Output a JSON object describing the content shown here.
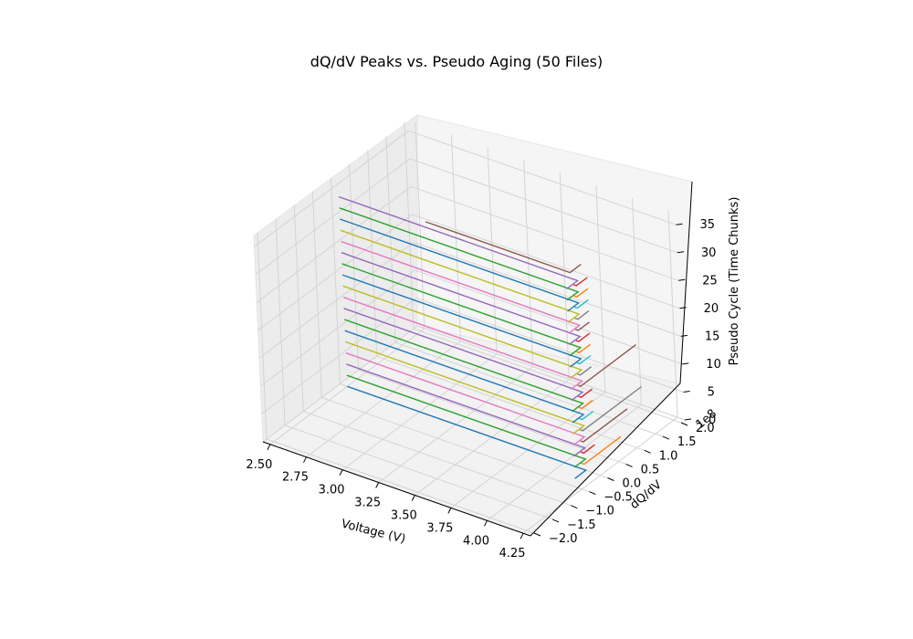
{
  "chart_data": {
    "type": "line",
    "projection": "3d",
    "title": "dQ/dV Peaks vs. Pseudo Aging (50 Files)",
    "xlabel": "Voltage (V)",
    "ylabel": "dQ/dV",
    "zlabel": "Pseudo Cycle (Time Chunks)",
    "y_offset_label": "1e8",
    "xlim": [
      2.45,
      4.3
    ],
    "ylim": [
      -2.1,
      2.1
    ],
    "zlim": [
      0,
      37
    ],
    "x_ticks": [
      "2.50",
      "2.75",
      "3.00",
      "3.25",
      "3.50",
      "3.75",
      "4.00",
      "4.25"
    ],
    "y_ticks": [
      "−2.0",
      "−1.5",
      "−1.0",
      "−0.5",
      "0.0",
      "0.5",
      "1.0",
      "1.5",
      "2.0"
    ],
    "z_ticks": [
      "0",
      "5",
      "10",
      "15",
      "20",
      "25",
      "30",
      "35"
    ],
    "grid": true,
    "legend": "none",
    "colors": [
      "#1f77b4",
      "#ff7f0e",
      "#2ca02c",
      "#d62728",
      "#9467bd",
      "#8c564b",
      "#e377c2",
      "#7f7f7f",
      "#bcbd22",
      "#17becf"
    ],
    "series": [
      {
        "voltage_start": 2.5,
        "voltage_end": 4.15,
        "cycle": 0,
        "spike_dqdv": -0.3
      },
      {
        "voltage_start": 4.12,
        "voltage_end": 4.14,
        "cycle": 1,
        "spike_dqdv": 1.0
      },
      {
        "voltage_start": 2.5,
        "voltage_end": 4.15,
        "cycle": 2,
        "spike_dqdv": -0.3
      },
      {
        "voltage_start": 4.12,
        "voltage_end": 4.14,
        "cycle": 3,
        "spike_dqdv": 0.3
      },
      {
        "voltage_start": 2.5,
        "voltage_end": 4.15,
        "cycle": 4,
        "spike_dqdv": -0.3
      },
      {
        "voltage_start": 4.12,
        "voltage_end": 4.14,
        "cycle": 5,
        "spike_dqdv": 1.2
      },
      {
        "voltage_start": 2.5,
        "voltage_end": 4.15,
        "cycle": 6,
        "spike_dqdv": -0.3
      },
      {
        "voltage_start": 4.12,
        "voltage_end": 4.14,
        "cycle": 7,
        "spike_dqdv": 1.6
      },
      {
        "voltage_start": 2.5,
        "voltage_end": 4.15,
        "cycle": 8,
        "spike_dqdv": -0.3
      },
      {
        "voltage_start": 4.12,
        "voltage_end": 4.14,
        "cycle": 9,
        "spike_dqdv": 0.3
      },
      {
        "voltage_start": 2.5,
        "voltage_end": 4.15,
        "cycle": 10,
        "spike_dqdv": -0.3
      },
      {
        "voltage_start": 4.12,
        "voltage_end": 4.14,
        "cycle": 11,
        "spike_dqdv": 0.3
      },
      {
        "voltage_start": 2.5,
        "voltage_end": 4.15,
        "cycle": 12,
        "spike_dqdv": -0.3
      },
      {
        "voltage_start": 4.12,
        "voltage_end": 4.14,
        "cycle": 13,
        "spike_dqdv": 0.3
      },
      {
        "voltage_start": 2.5,
        "voltage_end": 4.15,
        "cycle": 14,
        "spike_dqdv": -0.3
      },
      {
        "voltage_start": 4.12,
        "voltage_end": 4.14,
        "cycle": 15,
        "spike_dqdv": 1.5
      },
      {
        "voltage_start": 2.5,
        "voltage_end": 4.15,
        "cycle": 16,
        "spike_dqdv": -0.3
      },
      {
        "voltage_start": 4.12,
        "voltage_end": 4.14,
        "cycle": 17,
        "spike_dqdv": 0.3
      },
      {
        "voltage_start": 2.5,
        "voltage_end": 4.15,
        "cycle": 18,
        "spike_dqdv": -0.3
      },
      {
        "voltage_start": 4.12,
        "voltage_end": 4.14,
        "cycle": 19,
        "spike_dqdv": 0.3
      },
      {
        "voltage_start": 2.5,
        "voltage_end": 4.15,
        "cycle": 20,
        "spike_dqdv": -0.3
      },
      {
        "voltage_start": 4.12,
        "voltage_end": 4.14,
        "cycle": 21,
        "spike_dqdv": 0.3
      },
      {
        "voltage_start": 2.5,
        "voltage_end": 4.15,
        "cycle": 22,
        "spike_dqdv": -0.3
      },
      {
        "voltage_start": 4.12,
        "voltage_end": 4.14,
        "cycle": 23,
        "spike_dqdv": 0.3
      },
      {
        "voltage_start": 2.5,
        "voltage_end": 4.15,
        "cycle": 24,
        "spike_dqdv": -0.3
      },
      {
        "voltage_start": 4.12,
        "voltage_end": 4.14,
        "cycle": 25,
        "spike_dqdv": 0.3
      },
      {
        "voltage_start": 2.5,
        "voltage_end": 4.15,
        "cycle": 26,
        "spike_dqdv": -0.3
      },
      {
        "voltage_start": 4.12,
        "voltage_end": 4.14,
        "cycle": 27,
        "spike_dqdv": 0.3
      },
      {
        "voltage_start": 2.5,
        "voltage_end": 4.15,
        "cycle": 28,
        "spike_dqdv": -0.3
      },
      {
        "voltage_start": 4.12,
        "voltage_end": 4.14,
        "cycle": 29,
        "spike_dqdv": 0.3
      },
      {
        "voltage_start": 2.5,
        "voltage_end": 4.15,
        "cycle": 30,
        "spike_dqdv": -0.3
      },
      {
        "voltage_start": 4.12,
        "voltage_end": 4.14,
        "cycle": 31,
        "spike_dqdv": 0.3
      },
      {
        "voltage_start": 2.5,
        "voltage_end": 4.15,
        "cycle": 32,
        "spike_dqdv": -0.3
      },
      {
        "voltage_start": 4.12,
        "voltage_end": 4.14,
        "cycle": 33,
        "spike_dqdv": 0.3
      },
      {
        "voltage_start": 2.5,
        "voltage_end": 4.15,
        "cycle": 34,
        "spike_dqdv": -0.3
      },
      {
        "voltage_start": 3.1,
        "voltage_end": 4.1,
        "cycle": 35,
        "spike_dqdv": 0.3
      }
    ]
  }
}
